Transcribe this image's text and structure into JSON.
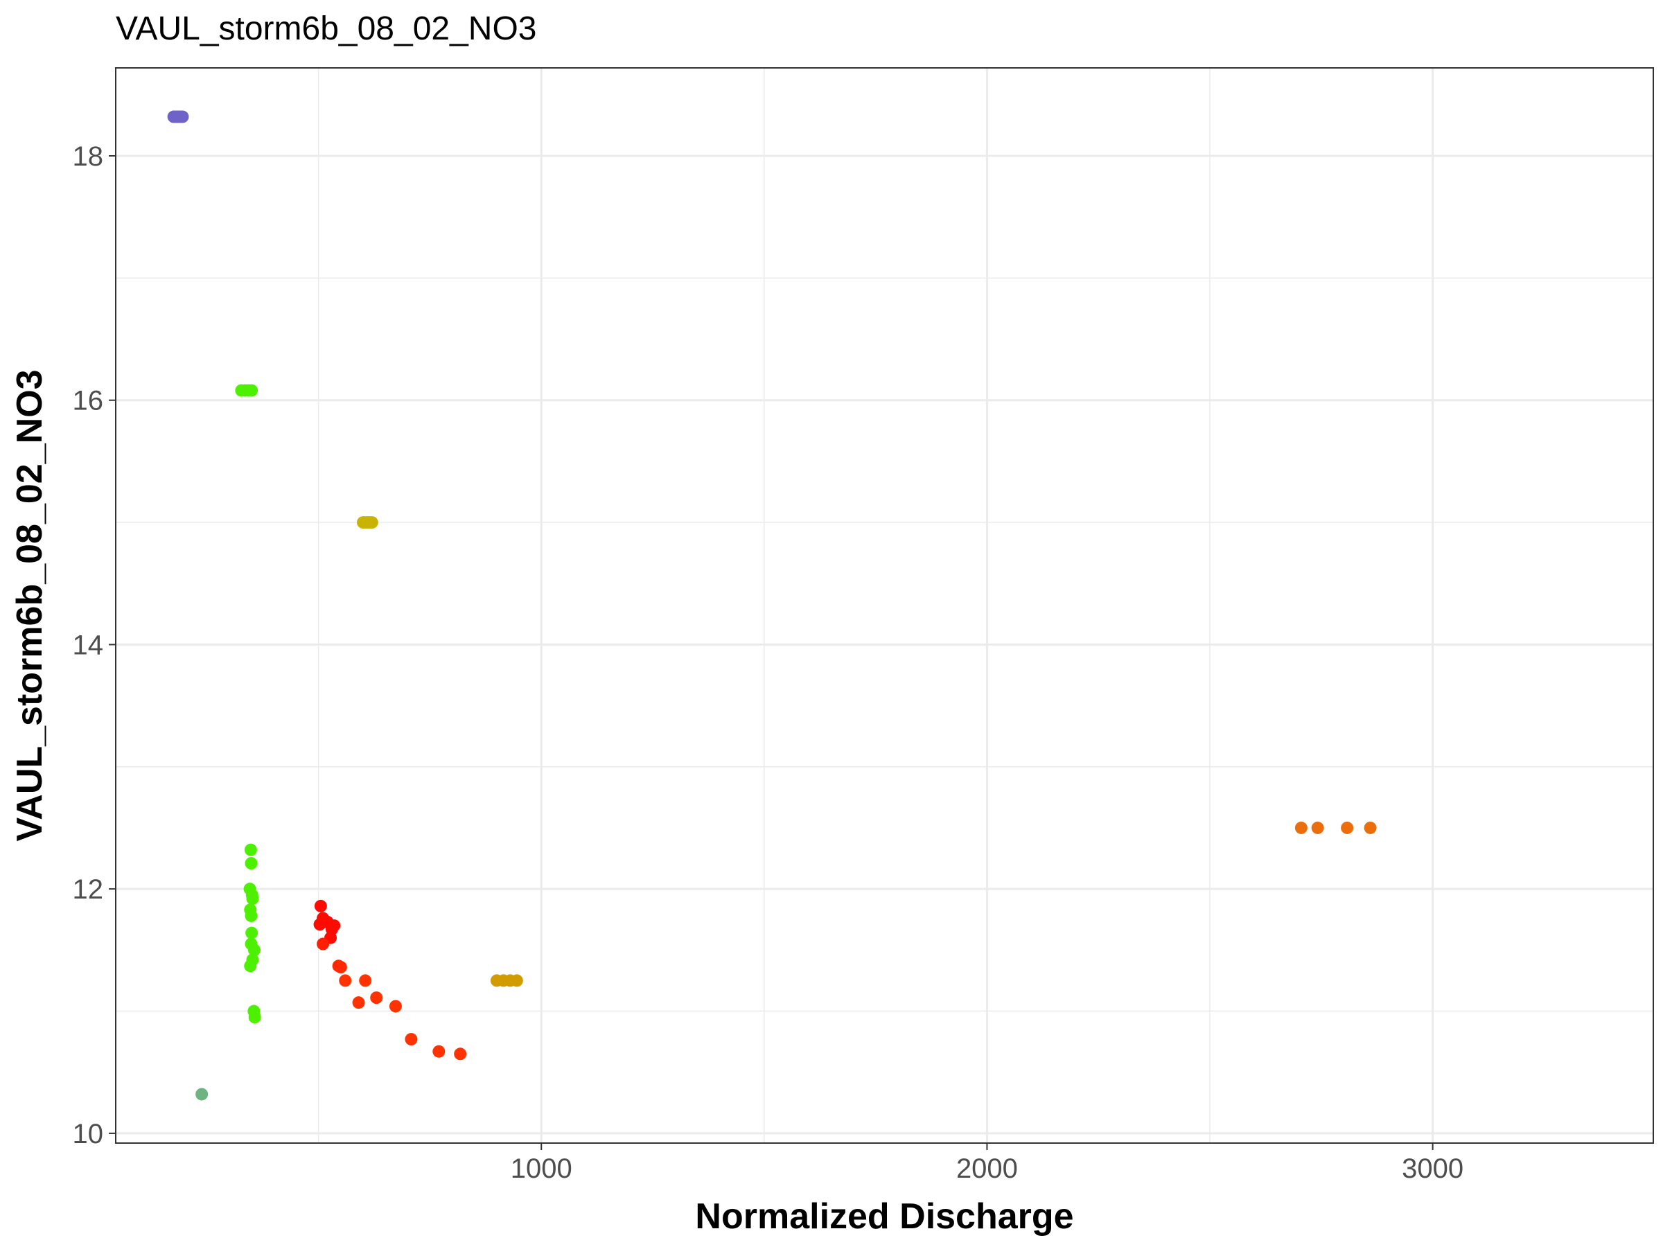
{
  "chart_data": {
    "type": "scatter",
    "title": "VAUL_storm6b_08_02_NO3",
    "xlabel": "Normalized Discharge",
    "ylabel": "VAUL_storm6b_08_02_NO3",
    "xlim": [
      45,
      3495
    ],
    "ylim": [
      9.92,
      18.72
    ],
    "x_ticks": [
      1000,
      2000,
      3000
    ],
    "x_tick_labels": [
      "1000",
      "2000",
      "3000"
    ],
    "y_ticks": [
      10,
      12,
      14,
      16,
      18
    ],
    "y_tick_labels": [
      "10",
      "12",
      "14",
      "16",
      "18"
    ],
    "grid": true,
    "legend": "none",
    "colors": {
      "purple": "#6e64c8",
      "green": "#4cf000",
      "olive": "#c8b400",
      "teal_green": "#6eb482",
      "red": "#ff0a00",
      "red_orange": "#ff3200",
      "gold": "#d29b00",
      "orange": "#eb6e0a"
    },
    "points": [
      {
        "x": 175,
        "y": 18.32,
        "color": "#6e64c8"
      },
      {
        "x": 180,
        "y": 18.32,
        "color": "#6e64c8"
      },
      {
        "x": 185,
        "y": 18.32,
        "color": "#6e64c8"
      },
      {
        "x": 190,
        "y": 18.32,
        "color": "#6e64c8"
      },
      {
        "x": 195,
        "y": 18.32,
        "color": "#6e64c8"
      },
      {
        "x": 238,
        "y": 10.32,
        "color": "#6eb482"
      },
      {
        "x": 327,
        "y": 16.08,
        "color": "#4cf000"
      },
      {
        "x": 335,
        "y": 16.08,
        "color": "#4cf000"
      },
      {
        "x": 343,
        "y": 16.08,
        "color": "#4cf000"
      },
      {
        "x": 350,
        "y": 16.08,
        "color": "#4cf000"
      },
      {
        "x": 348,
        "y": 12.32,
        "color": "#4cf000"
      },
      {
        "x": 349,
        "y": 12.21,
        "color": "#4cf000"
      },
      {
        "x": 346,
        "y": 12.0,
        "color": "#4cf000"
      },
      {
        "x": 351,
        "y": 11.95,
        "color": "#4cf000"
      },
      {
        "x": 352,
        "y": 11.92,
        "color": "#4cf000"
      },
      {
        "x": 347,
        "y": 11.83,
        "color": "#4cf000"
      },
      {
        "x": 349,
        "y": 11.78,
        "color": "#4cf000"
      },
      {
        "x": 350,
        "y": 11.64,
        "color": "#4cf000"
      },
      {
        "x": 349,
        "y": 11.55,
        "color": "#4cf000"
      },
      {
        "x": 356,
        "y": 11.5,
        "color": "#4cf000"
      },
      {
        "x": 352,
        "y": 11.42,
        "color": "#4cf000"
      },
      {
        "x": 347,
        "y": 11.37,
        "color": "#4cf000"
      },
      {
        "x": 355,
        "y": 11.0,
        "color": "#4cf000"
      },
      {
        "x": 357,
        "y": 10.95,
        "color": "#4cf000"
      },
      {
        "x": 600,
        "y": 15.0,
        "color": "#c8b400"
      },
      {
        "x": 605,
        "y": 15.0,
        "color": "#c8b400"
      },
      {
        "x": 610,
        "y": 15.0,
        "color": "#c8b400"
      },
      {
        "x": 615,
        "y": 15.0,
        "color": "#c8b400"
      },
      {
        "x": 620,
        "y": 15.0,
        "color": "#c8b400"
      },
      {
        "x": 505,
        "y": 11.86,
        "color": "#ff0a00"
      },
      {
        "x": 510,
        "y": 11.76,
        "color": "#ff0a00"
      },
      {
        "x": 503,
        "y": 11.71,
        "color": "#ff0a00"
      },
      {
        "x": 520,
        "y": 11.73,
        "color": "#ff0a00"
      },
      {
        "x": 535,
        "y": 11.7,
        "color": "#ff0a00"
      },
      {
        "x": 530,
        "y": 11.67,
        "color": "#ff0a00"
      },
      {
        "x": 527,
        "y": 11.6,
        "color": "#ff0a00"
      },
      {
        "x": 510,
        "y": 11.55,
        "color": "#ff1e00"
      },
      {
        "x": 545,
        "y": 11.37,
        "color": "#ff2800"
      },
      {
        "x": 550,
        "y": 11.36,
        "color": "#ff2800"
      },
      {
        "x": 560,
        "y": 11.25,
        "color": "#ff3200"
      },
      {
        "x": 605,
        "y": 11.25,
        "color": "#ff3200"
      },
      {
        "x": 630,
        "y": 11.11,
        "color": "#ff3200"
      },
      {
        "x": 590,
        "y": 11.07,
        "color": "#ff3200"
      },
      {
        "x": 673,
        "y": 11.04,
        "color": "#ff3200"
      },
      {
        "x": 708,
        "y": 10.77,
        "color": "#ff3200"
      },
      {
        "x": 770,
        "y": 10.67,
        "color": "#ff3200"
      },
      {
        "x": 818,
        "y": 10.65,
        "color": "#ff3200"
      },
      {
        "x": 900,
        "y": 11.25,
        "color": "#d29b00"
      },
      {
        "x": 915,
        "y": 11.25,
        "color": "#d29b00"
      },
      {
        "x": 930,
        "y": 11.25,
        "color": "#d29b00"
      },
      {
        "x": 945,
        "y": 11.25,
        "color": "#d29b00"
      },
      {
        "x": 2705,
        "y": 12.5,
        "color": "#eb6e0a"
      },
      {
        "x": 2742,
        "y": 12.5,
        "color": "#eb6e0a"
      },
      {
        "x": 2808,
        "y": 12.5,
        "color": "#eb6e0a"
      },
      {
        "x": 2860,
        "y": 12.5,
        "color": "#eb6e0a"
      }
    ]
  }
}
